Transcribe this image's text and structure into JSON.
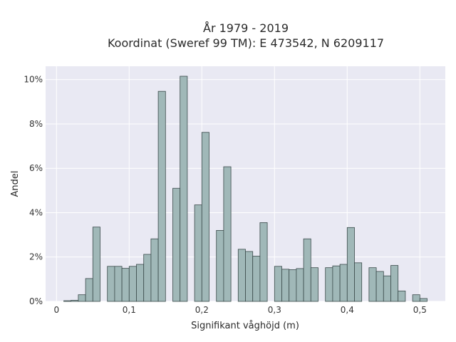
{
  "chart_data": {
    "type": "bar",
    "title_lines": [
      "År 1979 - 2019",
      "Koordinat (Sweref 99 TM): E 473542, N 6209117"
    ],
    "xlabel": "Signifikant våghöjd (m)",
    "ylabel": "Andel",
    "xlim": [
      -0.015,
      0.535
    ],
    "ylim": [
      0,
      10.6
    ],
    "x_ticks": [
      {
        "value": 0,
        "label": "0"
      },
      {
        "value": 0.1,
        "label": "0,1"
      },
      {
        "value": 0.2,
        "label": "0,2"
      },
      {
        "value": 0.3,
        "label": "0,3"
      },
      {
        "value": 0.4,
        "label": "0,4"
      },
      {
        "value": 0.5,
        "label": "0,5"
      }
    ],
    "y_ticks": [
      {
        "value": 0,
        "label": "0%"
      },
      {
        "value": 2,
        "label": "2%"
      },
      {
        "value": 4,
        "label": "4%"
      },
      {
        "value": 6,
        "label": "6%"
      },
      {
        "value": 8,
        "label": "8%"
      },
      {
        "value": 10,
        "label": "10%"
      }
    ],
    "bin_width": 0.01,
    "x": [
      0.015,
      0.025,
      0.035,
      0.045,
      0.055,
      0.075,
      0.085,
      0.095,
      0.105,
      0.115,
      0.125,
      0.135,
      0.145,
      0.165,
      0.175,
      0.195,
      0.205,
      0.225,
      0.235,
      0.255,
      0.265,
      0.275,
      0.285,
      0.305,
      0.315,
      0.325,
      0.335,
      0.345,
      0.355,
      0.375,
      0.385,
      0.395,
      0.405,
      0.415,
      0.435,
      0.445,
      0.455,
      0.465,
      0.475,
      0.495,
      0.505
    ],
    "values": [
      0.03,
      0.05,
      0.3,
      1.03,
      3.35,
      1.58,
      1.58,
      1.49,
      1.58,
      1.67,
      2.12,
      2.82,
      9.47,
      5.1,
      10.15,
      4.35,
      7.62,
      3.2,
      6.07,
      2.35,
      2.25,
      2.04,
      3.55,
      1.58,
      1.45,
      1.43,
      1.48,
      2.82,
      1.52,
      1.52,
      1.6,
      1.67,
      3.33,
      1.74,
      1.52,
      1.35,
      1.15,
      1.62,
      0.47,
      0.3,
      0.13
    ],
    "grid": true,
    "background": "#e9e9f3",
    "bar_color": "#a0b8b8",
    "bar_edge_color": "#3a4a4a"
  }
}
